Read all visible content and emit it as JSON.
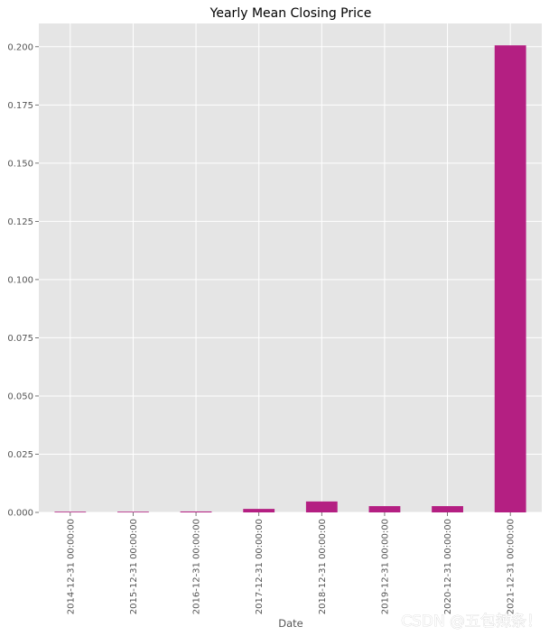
{
  "chart_data": {
    "type": "bar",
    "title": "Yearly Mean Closing Price",
    "xlabel": "Date",
    "ylabel": "",
    "categories": [
      "2014-12-31 00:00:00",
      "2015-12-31 00:00:00",
      "2016-12-31 00:00:00",
      "2017-12-31 00:00:00",
      "2018-12-31 00:00:00",
      "2019-12-31 00:00:00",
      "2020-12-31 00:00:00",
      "2021-12-31 00:00:00"
    ],
    "values": [
      0.0003,
      0.0003,
      0.0004,
      0.0015,
      0.0047,
      0.0027,
      0.0027,
      0.2006
    ],
    "ylim": [
      0,
      0.21
    ],
    "yticks": [
      "0.000",
      "0.025",
      "0.050",
      "0.075",
      "0.100",
      "0.125",
      "0.150",
      "0.175",
      "0.200"
    ],
    "grid": true,
    "legend": "none",
    "bar_color": "#b41f82",
    "background_color": "#e5e5e5",
    "grid_color": "#ffffff"
  },
  "watermark": "CSDN @五包辣条！"
}
